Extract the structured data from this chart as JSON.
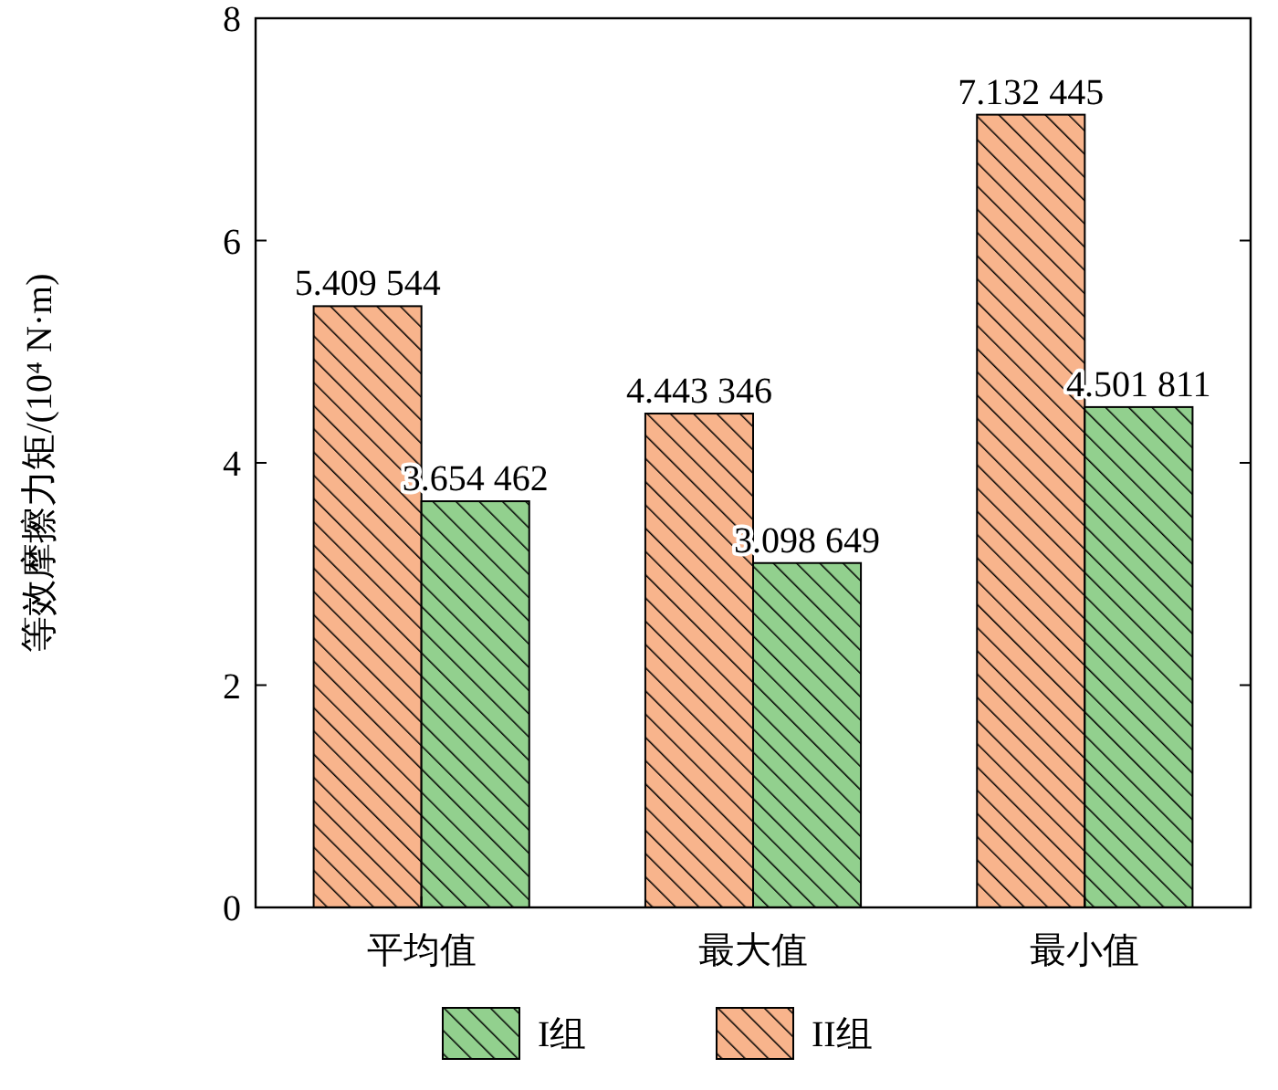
{
  "chart_data": {
    "type": "bar",
    "ylabel": "等效摩擦力矩/(10⁴ N·m)",
    "categories": [
      "平均值",
      "最大值",
      "最小值"
    ],
    "series": [
      {
        "name": "II组",
        "color": "#f8b48c",
        "values": [
          5.409544,
          4.443346,
          7.132445
        ],
        "value_labels": [
          "5.409 544",
          "4.443 346",
          "7.132 445"
        ]
      },
      {
        "name": "I组",
        "color": "#92d08e",
        "values": [
          3.654462,
          3.098649,
          4.501811
        ],
        "value_labels": [
          "3.654 462",
          "3.098 649",
          "4.501 811"
        ]
      }
    ],
    "ylim": [
      0,
      8
    ],
    "yticks": [
      0,
      2,
      4,
      6,
      8
    ],
    "grid": false,
    "legend": "bottom"
  }
}
